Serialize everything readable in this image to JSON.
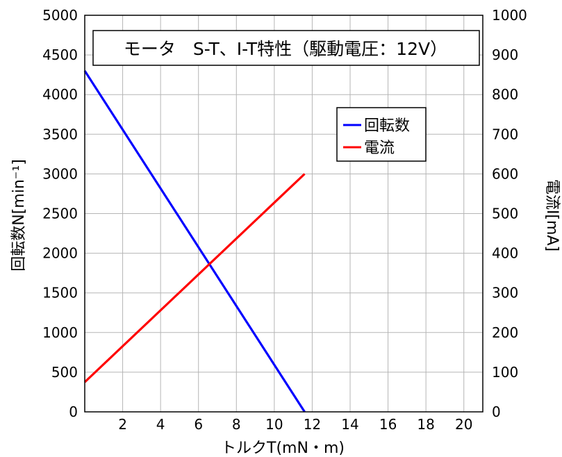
{
  "chart_data": {
    "type": "line",
    "title": "モータ　S-T、I-T特性（駆動電圧：12V）",
    "xlabel": "トルクT(mN・m)",
    "ylabel_left": "回転数N[min⁻¹]",
    "ylabel_right": "電流I[mA]",
    "xlim": [
      0,
      21
    ],
    "ylim_left": [
      0,
      5000
    ],
    "ylim_right": [
      0,
      1000
    ],
    "x_ticks": [
      "2",
      "4",
      "6",
      "8",
      "10",
      "12",
      "14",
      "16",
      "18",
      "20"
    ],
    "x_tick_values": [
      2,
      4,
      6,
      8,
      10,
      12,
      14,
      16,
      18,
      20
    ],
    "y_left_ticks": [
      "0",
      "500",
      "1000",
      "1500",
      "2000",
      "2500",
      "3000",
      "3500",
      "4000",
      "4500",
      "5000"
    ],
    "y_left_tick_values": [
      0,
      500,
      1000,
      1500,
      2000,
      2500,
      3000,
      3500,
      4000,
      4500,
      5000
    ],
    "y_right_ticks": [
      "0",
      "100",
      "200",
      "300",
      "400",
      "500",
      "600",
      "700",
      "800",
      "900",
      "1000"
    ],
    "y_right_tick_values": [
      0,
      100,
      200,
      300,
      400,
      500,
      600,
      700,
      800,
      900,
      1000
    ],
    "grid": true,
    "legend_position": "top-right",
    "series": [
      {
        "name": "回転数",
        "axis": "left",
        "color": "#0000ff",
        "x": [
          0,
          11.6
        ],
        "y": [
          4300,
          0
        ]
      },
      {
        "name": "電流",
        "axis": "right",
        "color": "#ff0000",
        "x": [
          0,
          11.6
        ],
        "y": [
          75,
          600
        ]
      }
    ]
  }
}
